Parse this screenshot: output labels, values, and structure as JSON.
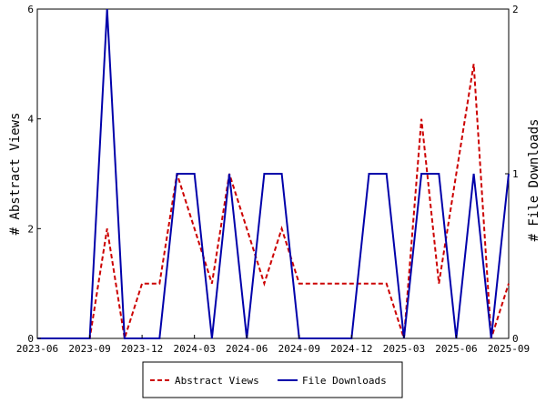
{
  "chart_data": {
    "type": "line",
    "x": [
      "2023-06",
      "2023-07",
      "2023-08",
      "2023-09",
      "2023-10",
      "2023-11",
      "2023-12",
      "2024-01",
      "2024-02",
      "2024-03",
      "2024-04",
      "2024-05",
      "2024-06",
      "2024-07",
      "2024-08",
      "2024-09",
      "2024-10",
      "2024-11",
      "2024-12",
      "2025-01",
      "2025-02",
      "2025-03",
      "2025-04",
      "2025-05",
      "2025-06",
      "2025-07",
      "2025-08",
      "2025-09"
    ],
    "series": [
      {
        "name": "Abstract Views",
        "axis": "left",
        "color": "#cc0000",
        "dash": true,
        "values": [
          0,
          0,
          0,
          0,
          2,
          0,
          1,
          1,
          3,
          2,
          1,
          3,
          2,
          1,
          2,
          1,
          1,
          1,
          1,
          1,
          1,
          0,
          4,
          1,
          3,
          5,
          0,
          1
        ]
      },
      {
        "name": "File Downloads",
        "axis": "right",
        "color": "#0000aa",
        "dash": false,
        "values": [
          0,
          0,
          0,
          0,
          2,
          0,
          0,
          0,
          1,
          1,
          0,
          1,
          0,
          1,
          1,
          0,
          0,
          0,
          0,
          1,
          1,
          0,
          1,
          1,
          0,
          1,
          0,
          1
        ]
      }
    ],
    "xticks": [
      "2023-06",
      "2023-09",
      "2023-12",
      "2024-03",
      "2024-06",
      "2024-09",
      "2024-12",
      "2025-03",
      "2025-06",
      "2025-09"
    ],
    "ylabel": "# Abstract Views",
    "y2label": "# File Downloads",
    "ylim": [
      0,
      6
    ],
    "yticks": [
      "0",
      "2",
      "4",
      "6"
    ],
    "y2lim": [
      0,
      2
    ],
    "y2ticks": [
      "0",
      "1",
      "2"
    ],
    "grid": false,
    "legend_position": "bottom-center"
  }
}
